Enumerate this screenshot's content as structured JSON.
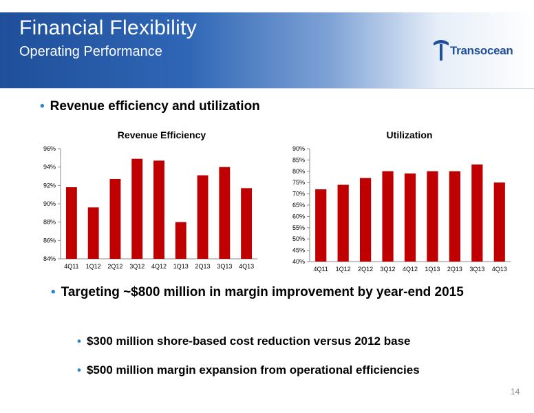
{
  "header": {
    "title": "Financial Flexibility",
    "subtitle": "Operating Performance",
    "logo_text": "Transocean"
  },
  "bullets": {
    "main": "Revenue efficiency and utilization",
    "target": "Targeting ~$800 million in margin improvement by year-end 2015",
    "sub1": "$300 million shore-based cost reduction versus 2012 base",
    "sub2": "$500 million margin expansion from operational efficiencies"
  },
  "page_number": "14",
  "colors": {
    "bar": "#c00000",
    "header_blue": "#1f4f9a",
    "bullet": "#2f87c8"
  },
  "chart_data": [
    {
      "type": "bar",
      "title": "Revenue Efficiency",
      "categories": [
        "4Q11",
        "1Q12",
        "2Q12",
        "3Q12",
        "4Q12",
        "1Q13",
        "2Q13",
        "3Q13",
        "4Q13"
      ],
      "values": [
        91.8,
        89.6,
        92.7,
        94.9,
        94.7,
        88.0,
        93.1,
        94.0,
        91.7
      ],
      "ylim": [
        84,
        96
      ],
      "yticks": [
        "84%",
        "86%",
        "88%",
        "90%",
        "92%",
        "94%",
        "96%"
      ],
      "ytick_values": [
        84,
        86,
        88,
        90,
        92,
        94,
        96
      ],
      "xlabel": "",
      "ylabel": ""
    },
    {
      "type": "bar",
      "title": "Utilization",
      "categories": [
        "4Q11",
        "1Q12",
        "2Q12",
        "3Q12",
        "4Q12",
        "1Q13",
        "2Q13",
        "3Q13",
        "4Q13"
      ],
      "values": [
        72,
        74,
        77,
        80,
        79,
        80,
        80,
        83,
        75
      ],
      "ylim": [
        40,
        90
      ],
      "yticks": [
        "40%",
        "45%",
        "50%",
        "55%",
        "60%",
        "65%",
        "70%",
        "75%",
        "80%",
        "85%",
        "90%"
      ],
      "ytick_values": [
        40,
        45,
        50,
        55,
        60,
        65,
        70,
        75,
        80,
        85,
        90
      ],
      "xlabel": "",
      "ylabel": ""
    }
  ]
}
